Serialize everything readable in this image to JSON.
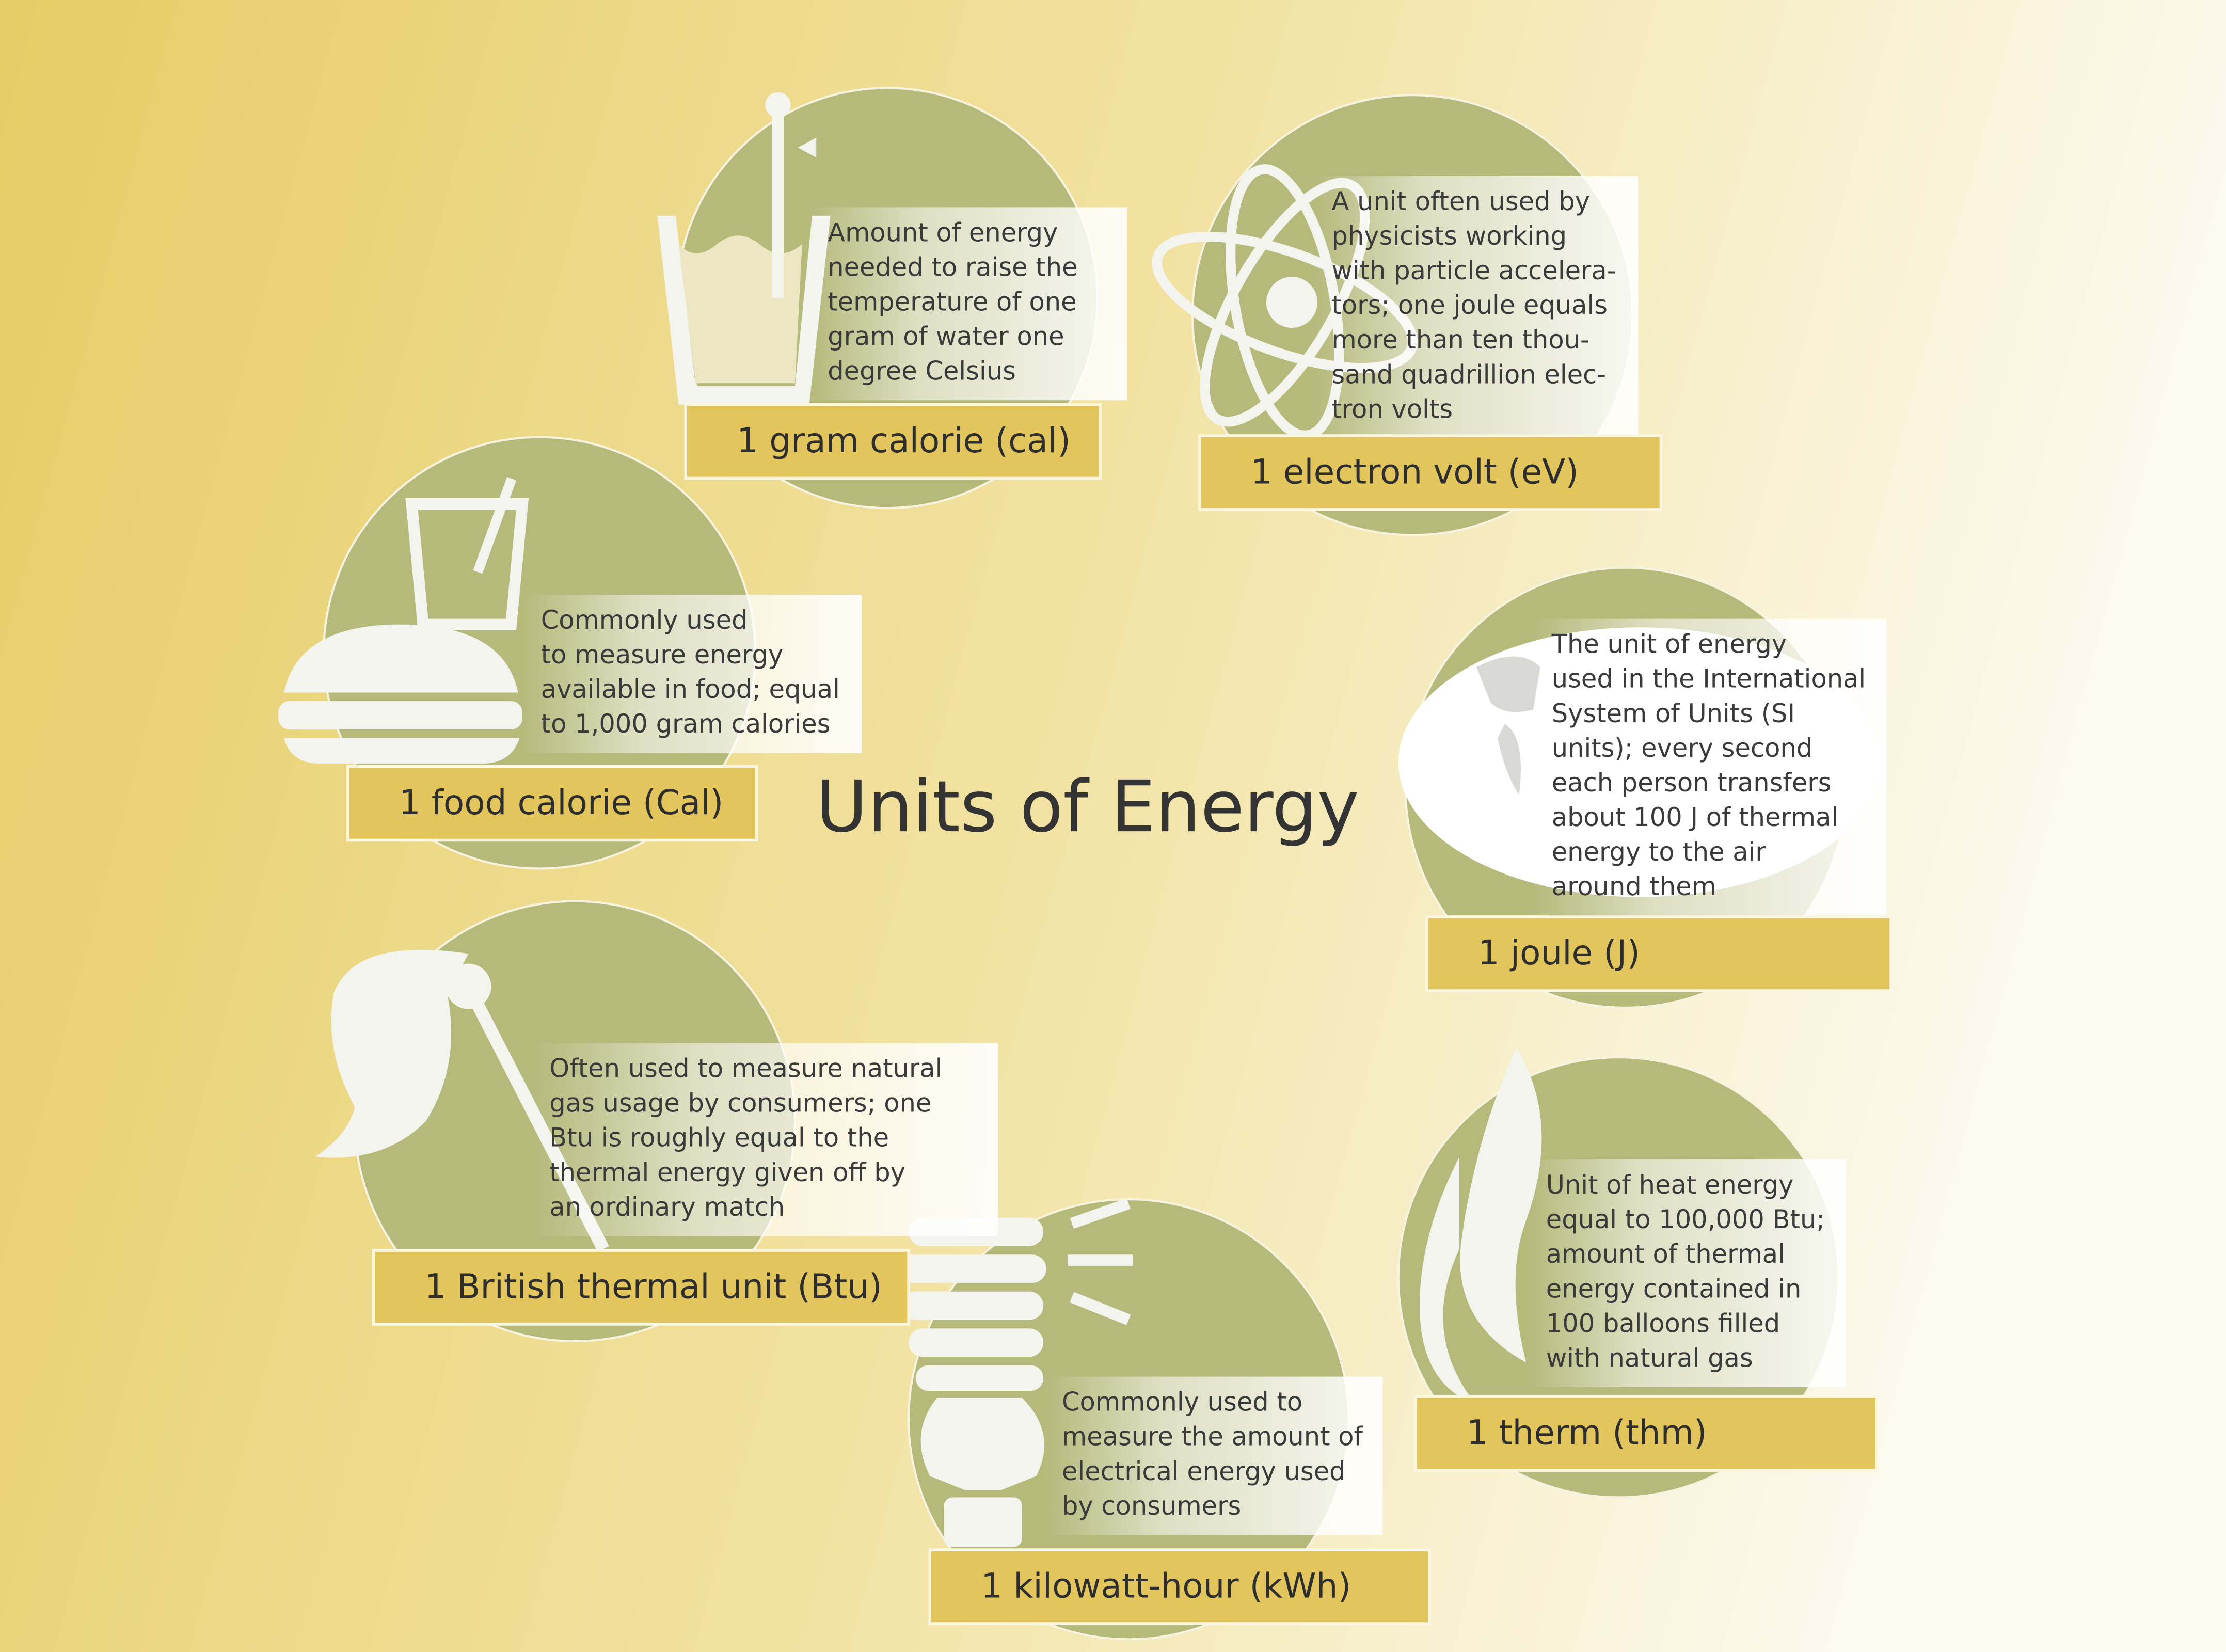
{
  "title": "Units of Energy",
  "units": [
    {
      "label": "1 gram calorie (cal)",
      "description": [
        "Amount of energy",
        "needed to raise the",
        "temperature of one",
        "gram of water one",
        "degree Celsius"
      ]
    },
    {
      "label": "1 electron volt (eV)",
      "description": [
        "A unit often used by",
        "physicists working",
        "with particle accelera-",
        "tors; one joule equals",
        "more than ten thou-",
        "sand quadrillion elec-",
        "tron volts"
      ]
    },
    {
      "label": "1 food calorie (Cal)",
      "description": [
        "Commonly used",
        "to measure energy",
        "available in food; equal",
        "to 1,000 gram calories"
      ]
    },
    {
      "label": "1 joule (J)",
      "description": [
        "The unit of energy",
        "used in the International",
        "System of Units (SI",
        "units); every second",
        "each person transfers",
        "about 100 J of thermal",
        "energy to the air",
        "around them"
      ]
    },
    {
      "label": "1 British thermal unit (Btu)",
      "description": [
        "Often used to measure natural",
        "gas usage by consumers; one",
        "Btu is roughly equal to the",
        "thermal energy given off by",
        "an ordinary match"
      ]
    },
    {
      "label": "1 kilowatt-hour (kWh)",
      "description": [
        "Commonly used to",
        "measure the amount of",
        "electrical energy used",
        "by consumers"
      ]
    },
    {
      "label": "1 therm (thm)",
      "description": [
        "Unit of heat energy",
        "equal to 100,000 Btu;",
        "amount of thermal",
        "energy contained in",
        "100 balloons filled",
        "with natural gas"
      ]
    }
  ]
}
